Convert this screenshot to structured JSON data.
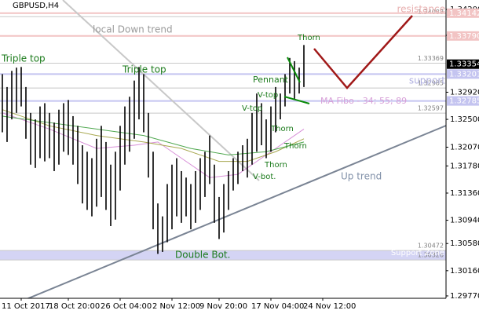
{
  "chart_data": {
    "type": "range-bar",
    "title": "GBPUSD,H4",
    "ylim": [
      1.29733,
      1.34346
    ],
    "yticks": [
      {
        "value": 1.342,
        "label": "1.34200"
      },
      {
        "value": 1.338,
        "label": "1.33800"
      },
      {
        "value": 1.3292,
        "label": "1.32920"
      },
      {
        "value": 1.325,
        "label": "1.32500"
      },
      {
        "value": 1.3207,
        "label": "1.32070"
      },
      {
        "value": 1.3178,
        "label": "1.31780"
      },
      {
        "value": 1.3136,
        "label": "1.31360"
      },
      {
        "value": 1.3094,
        "label": "1.30940"
      },
      {
        "value": 1.3058,
        "label": "1.30580"
      },
      {
        "value": 1.3016,
        "label": "1.30160"
      },
      {
        "value": 1.2977,
        "label": "1.29770"
      }
    ],
    "last_price": {
      "value": 1.33354,
      "label": "1.33354"
    },
    "levels": [
      {
        "value": 1.34142,
        "label": "1.34142",
        "color": "#f2c4c4"
      },
      {
        "value": 1.3379,
        "label": "1.33790",
        "color": "#f2c4c4"
      },
      {
        "value": 1.33201,
        "label": "1.33201",
        "color": "#c4c4f0"
      },
      {
        "value": 1.32785,
        "label": "1.32785",
        "color": "#c4c4f0"
      }
    ],
    "level_notes": [
      {
        "value": 1.34088,
        "label": "1.34088"
      },
      {
        "value": 1.33369,
        "label": "1.33369"
      },
      {
        "value": 1.32985,
        "label": "1.32985"
      },
      {
        "value": 1.32597,
        "label": "1.32597"
      },
      {
        "value": 1.30472,
        "label": "1.30472"
      },
      {
        "value": 1.30326,
        "label": "1.30326"
      }
    ],
    "categories": [
      null,
      null,
      null,
      null,
      "11 Oct 2017",
      null,
      null,
      null,
      null,
      null,
      null,
      null,
      null,
      null,
      "18 Oct 20:00",
      null,
      null,
      null,
      null,
      null,
      null,
      null,
      null,
      null,
      null,
      "26 Oct 04:00",
      null,
      null,
      null,
      null,
      null,
      null,
      null,
      null,
      null,
      null,
      "2 Nov 12:00",
      null,
      null,
      null,
      null,
      null,
      null,
      null,
      null,
      null,
      "9 Nov 20:00",
      null,
      null,
      null,
      null,
      null,
      null,
      null,
      null,
      null,
      null,
      "17 Nov 04:00",
      null,
      null,
      null,
      null,
      null,
      null,
      null,
      null,
      null,
      null,
      "24 Nov 12:00"
    ],
    "low": [
      1.323,
      1.3215,
      1.325,
      1.326,
      1.327,
      1.322,
      1.318,
      1.3175,
      1.319,
      1.3185,
      1.319,
      1.317,
      1.318,
      1.32,
      1.3195,
      1.318,
      1.315,
      1.312,
      1.311,
      1.31,
      1.3115,
      1.313,
      1.311,
      1.3085,
      1.3095,
      1.314,
      1.318,
      1.32,
      1.322,
      1.325,
      1.323,
      1.316,
      1.308,
      1.3042,
      1.3045,
      1.306,
      1.308,
      1.31,
      1.309,
      1.31,
      1.308,
      1.309,
      1.311,
      1.313,
      1.315,
      1.309,
      1.3065,
      1.3075,
      1.311,
      1.314,
      1.315,
      1.317,
      1.316,
      1.318,
      1.32,
      1.321,
      1.319,
      1.32,
      1.323,
      1.325,
      1.327,
      1.329,
      1.328,
      1.329,
      1.33,
      null,
      null,
      null,
      null
    ],
    "high": [
      1.332,
      1.33,
      1.3325,
      1.333,
      1.3331,
      1.33,
      1.326,
      1.325,
      1.327,
      1.3275,
      1.326,
      1.3245,
      1.3265,
      1.3275,
      1.328,
      1.3255,
      1.324,
      1.321,
      1.32,
      1.319,
      1.322,
      1.324,
      1.3215,
      1.318,
      1.32,
      1.324,
      1.327,
      1.3285,
      1.331,
      1.3331,
      1.332,
      1.326,
      1.32,
      1.312,
      1.31,
      1.315,
      1.318,
      1.319,
      1.317,
      1.316,
      1.315,
      1.317,
      1.319,
      1.32,
      1.3225,
      1.318,
      1.313,
      1.315,
      1.317,
      1.319,
      1.32,
      1.321,
      1.322,
      1.326,
      1.329,
      1.3275,
      1.325,
      1.327,
      1.33,
      1.329,
      1.332,
      1.3345,
      1.334,
      1.333,
      1.3365,
      null,
      null,
      null,
      null
    ],
    "moving_averages": [
      {
        "color": "#d890d8",
        "x": [
          0,
          10,
          20,
          28,
          33,
          38,
          44,
          50,
          56,
          62,
          64
        ],
        "values": [
          1.326,
          1.3235,
          1.3205,
          1.321,
          1.3215,
          1.319,
          1.316,
          1.3165,
          1.3195,
          1.3225,
          1.3235
        ]
      },
      {
        "color": "#a8a850",
        "x": [
          0,
          10,
          20,
          30,
          38,
          46,
          52,
          58,
          64
        ],
        "values": [
          1.3265,
          1.324,
          1.3225,
          1.3215,
          1.3205,
          1.3185,
          1.3185,
          1.32,
          1.322
        ]
      },
      {
        "color": "#50a850",
        "x": [
          0,
          10,
          20,
          30,
          40,
          48,
          56,
          64
        ],
        "values": [
          1.3255,
          1.3245,
          1.3235,
          1.3225,
          1.3205,
          1.3195,
          1.32,
          1.3215
        ]
      }
    ],
    "annotations": {
      "down_trend": "local Down trend",
      "triple_top_1": "Triple top",
      "triple_top_2": "Triple top",
      "pennant": "Pennant",
      "thorn_1": "Thorn",
      "thorn_2": "Thorn",
      "thorn_3": "Thorn",
      "thorn_4": "Thorn",
      "v_top_1": "V-top",
      "v_top_2": "V-top",
      "v_bot": "V-bot.",
      "ma_fibo": "MA Fibo - 34; 55; 89",
      "up_trend": "Up trend",
      "double_bot": "Double Bot.",
      "support": "support",
      "resistance": "resistance",
      "support_zone": "Support Zone"
    }
  }
}
